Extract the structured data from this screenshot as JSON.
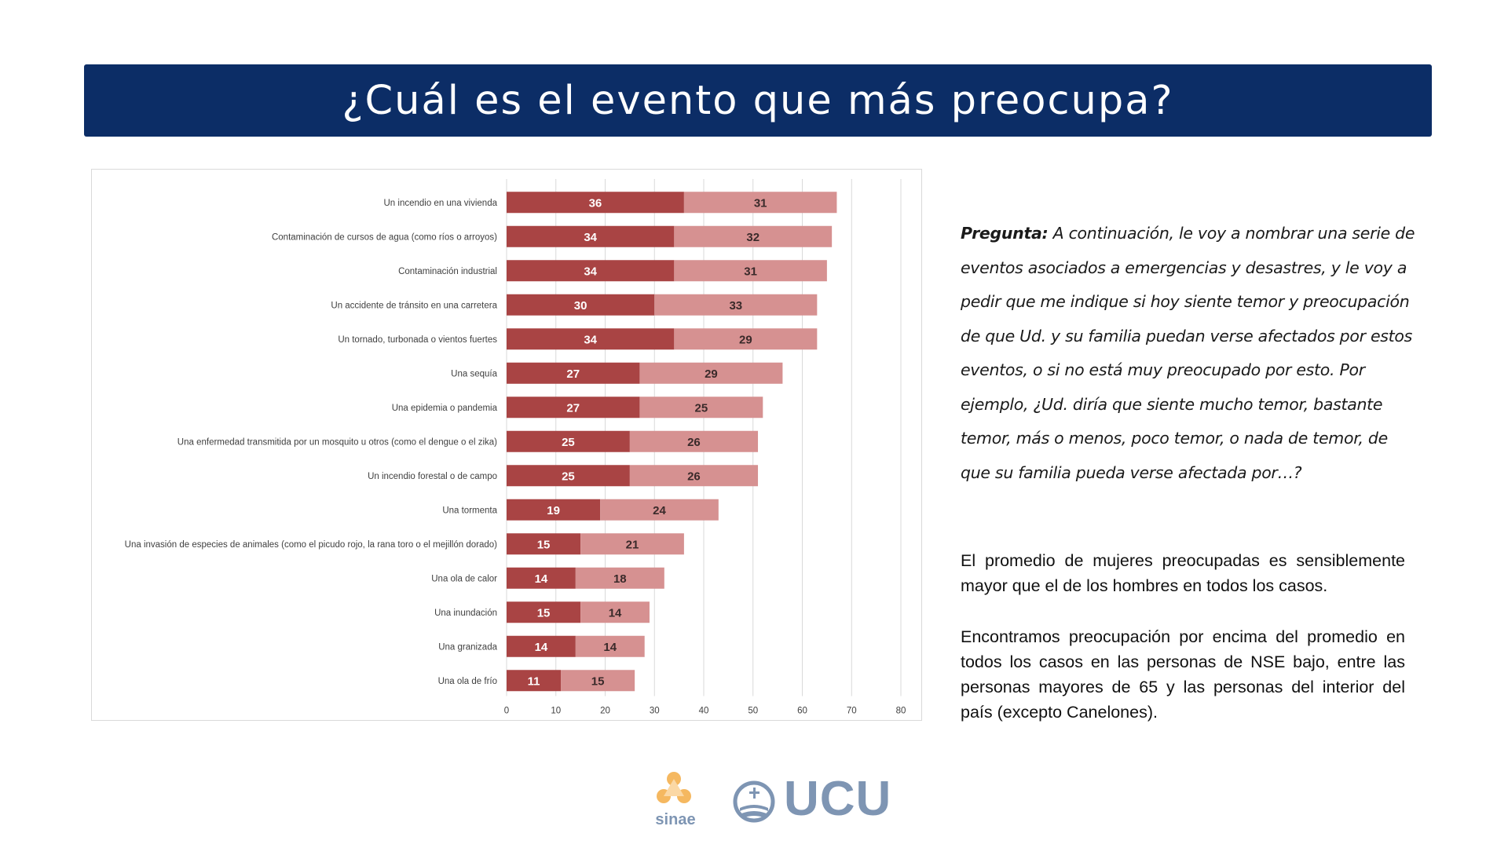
{
  "title": "¿Cuál es el evento que más preocupa?",
  "colors": {
    "banner": "#0c2d66",
    "series_dark": "#a94444",
    "series_light": "#d69191",
    "logo_orange": "#f5b860",
    "logo_blue": "#7e95b3"
  },
  "chart_data": {
    "type": "bar",
    "orientation": "horizontal",
    "stacked": true,
    "categories": [
      "Un incendio en una vivienda",
      "Contaminación de cursos de agua (como ríos o arroyos)",
      "Contaminación industrial",
      "Un accidente de tránsito en una carretera",
      "Un tornado, turbonada o vientos fuertes",
      "Una sequía",
      "Una epidemia o pandemia",
      "Una enfermedad transmitida por un mosquito u otros (como el dengue o el zika)",
      "Un incendio forestal o de campo",
      "Una tormenta",
      "Una invasión de especies de animales (como el picudo rojo, la rana toro o el mejillón dorado)",
      "Una ola de calor",
      "Una inundación",
      "Una granizada",
      "Una ola de frío"
    ],
    "series": [
      {
        "values": [
          36,
          34,
          34,
          30,
          34,
          27,
          27,
          25,
          25,
          19,
          15,
          14,
          15,
          14,
          11
        ]
      },
      {
        "values": [
          31,
          32,
          31,
          33,
          29,
          29,
          25,
          26,
          26,
          24,
          21,
          18,
          14,
          14,
          15
        ]
      }
    ],
    "x_ticks": [
      "0",
      "10",
      "20",
      "30",
      "40",
      "50",
      "60",
      "70",
      "80"
    ],
    "xlim": [
      0,
      80
    ],
    "grid": true,
    "legend": "none"
  },
  "question": {
    "label": "Pregunta:",
    "text": " A continuación, le voy a nombrar una serie de eventos asociados a emergencias y desastres, y le voy a pedir que me indique si hoy siente temor y preocupación de que Ud. y su familia puedan verse afectados por estos eventos, o si no está muy preocupado por esto. Por ejemplo, ¿Ud. diría que siente mucho temor, bastante temor, más o menos, poco temor, o nada de temor, de que su familia pueda verse afectada por…?"
  },
  "paragraph1": "El promedio de mujeres preocupadas es sensiblemente mayor que el de los hombres en todos los casos.",
  "paragraph2": "Encontramos preocupación por encima del promedio en todos los casos en las personas de NSE bajo, entre las personas mayores de 65 y las personas del interior del país (excepto Canelones).",
  "logos": {
    "sinae": "sinae",
    "ucu": "UCU"
  }
}
